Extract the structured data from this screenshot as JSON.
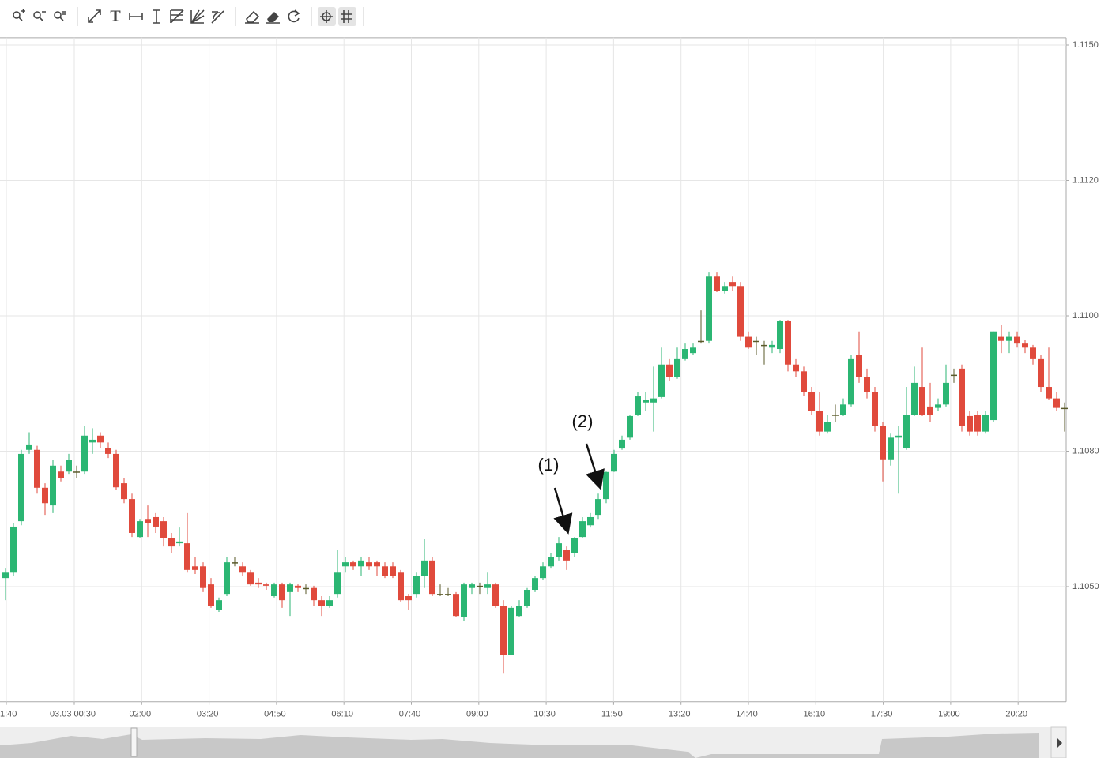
{
  "chart_data": {
    "type": "candlestick",
    "open": [
      1.10519,
      1.10531,
      1.10645,
      1.10802,
      1.10802,
      1.10719,
      1.1068,
      1.10755,
      1.10755,
      1.10755,
      1.10755,
      1.10813,
      1.10823,
      1.10805,
      1.10794,
      1.10729,
      1.10694,
      1.1061,
      1.1065,
      1.10654,
      1.10645,
      1.10607,
      1.10596,
      1.10596,
      1.10545,
      1.10545,
      1.10505,
      1.10448,
      1.10484,
      1.10554,
      1.10545,
      1.10531,
      1.10509,
      1.10505,
      1.10479,
      1.10505,
      1.10488,
      1.10502,
      1.10497,
      1.10497,
      1.1047,
      1.10458,
      1.10484,
      1.10545,
      1.10554,
      1.10545,
      1.10554,
      1.10554,
      1.10545,
      1.10545,
      1.10531,
      1.10479,
      1.10484,
      1.10523,
      1.10558,
      1.10484,
      1.10484,
      1.10484,
      1.10432,
      1.10497,
      1.10502,
      1.10497,
      1.10505,
      1.10458,
      1.10348,
      1.10435,
      1.10458,
      1.10493,
      1.10519,
      1.10545,
      1.10566,
      1.10581,
      1.10575,
      1.1061,
      1.10636,
      1.10659,
      1.10694,
      1.10755,
      1.10804,
      1.1082,
      1.10854,
      1.10872,
      1.10872,
      1.1088,
      1.10928,
      1.1091,
      1.10936,
      1.10945,
      1.10963,
      1.10963,
      1.11058,
      1.11037,
      1.1105,
      1.11044,
      1.10969,
      1.10963,
      1.10957,
      1.10953,
      1.10951,
      1.10992,
      1.10928,
      1.10918,
      1.10887,
      1.1086,
      1.10829,
      1.10854,
      1.10854,
      1.10869,
      1.10942,
      1.1091,
      1.10887,
      1.10837,
      1.10782,
      1.1082,
      1.10805,
      1.10854,
      1.10895,
      1.10866,
      1.10864,
      1.10869,
      1.10913,
      1.10922,
      1.10852,
      1.10854,
      1.10829,
      1.10846,
      1.10969,
      1.10963,
      1.10969,
      1.10959,
      1.10953,
      1.10936,
      1.10895,
      1.10878,
      1.10864
    ],
    "close": [
      1.10531,
      1.10633,
      1.10794,
      1.1081,
      1.10719,
      1.10685,
      1.10768,
      1.10741,
      1.1078,
      1.10755,
      1.10823,
      1.10817,
      1.10813,
      1.10794,
      1.1072,
      1.10694,
      1.10619,
      1.10645,
      1.10641,
      1.10633,
      1.10607,
      1.10589,
      1.106,
      1.10537,
      1.10537,
      1.10497,
      1.10458,
      1.1047,
      1.10554,
      1.10554,
      1.10531,
      1.10505,
      1.10505,
      1.10502,
      1.10505,
      1.1047,
      1.10505,
      1.10497,
      1.10497,
      1.1047,
      1.10458,
      1.1047,
      1.10531,
      1.10554,
      1.10545,
      1.10558,
      1.10545,
      1.10545,
      1.10523,
      1.10523,
      1.1047,
      1.1047,
      1.10523,
      1.10558,
      1.10484,
      1.10484,
      1.10484,
      1.10435,
      1.10505,
      1.10505,
      1.10502,
      1.10505,
      1.10458,
      1.10348,
      1.10453,
      1.10458,
      1.10493,
      1.10519,
      1.10545,
      1.10566,
      1.10596,
      1.10558,
      1.10607,
      1.10645,
      1.10654,
      1.10694,
      1.10754,
      1.10794,
      1.10817,
      1.10852,
      1.10881,
      1.10876,
      1.10878,
      1.10928,
      1.1091,
      1.10936,
      1.10951,
      1.10953,
      1.10963,
      1.11058,
      1.11037,
      1.11044,
      1.11044,
      1.10969,
      1.10953,
      1.10963,
      1.10957,
      1.10957,
      1.10992,
      1.10928,
      1.10918,
      1.10887,
      1.1086,
      1.10829,
      1.10843,
      1.10854,
      1.10869,
      1.10936,
      1.1091,
      1.10887,
      1.10837,
      1.10782,
      1.1082,
      1.10823,
      1.10854,
      1.10901,
      1.10854,
      1.10854,
      1.10869,
      1.10901,
      1.10913,
      1.10837,
      1.10829,
      1.10829,
      1.10854,
      1.10977,
      1.10963,
      1.10969,
      1.10959,
      1.10953,
      1.10936,
      1.10895,
      1.10878,
      1.10864,
      1.10864
    ],
    "high": [
      1.1054,
      1.10641,
      1.10802,
      1.10828,
      1.10808,
      1.10729,
      1.1078,
      1.10768,
      1.10794,
      1.10768,
      1.10837,
      1.10834,
      1.10828,
      1.10813,
      1.10802,
      1.10741,
      1.10706,
      1.1065,
      1.1068,
      1.10663,
      1.10654,
      1.10619,
      1.10631,
      1.10663,
      1.10566,
      1.10554,
      1.10519,
      1.10476,
      1.10566,
      1.10566,
      1.10554,
      1.10537,
      1.10519,
      1.10509,
      1.10509,
      1.10509,
      1.10509,
      1.10505,
      1.10505,
      1.10502,
      1.10479,
      1.10479,
      1.10581,
      1.10566,
      1.10558,
      1.10566,
      1.10566,
      1.10558,
      1.10554,
      1.10554,
      1.10537,
      1.10484,
      1.10531,
      1.10605,
      1.10566,
      1.10505,
      1.10497,
      1.10488,
      1.10509,
      1.10509,
      1.10509,
      1.10531,
      1.10509,
      1.1047,
      1.10458,
      1.1047,
      1.10497,
      1.10523,
      1.10554,
      1.10575,
      1.1061,
      1.10589,
      1.1061,
      1.10654,
      1.10663,
      1.10706,
      1.10755,
      1.10802,
      1.10823,
      1.10854,
      1.10887,
      1.10887,
      1.10925,
      1.10953,
      1.10936,
      1.10953,
      1.10959,
      1.10959,
      1.11008,
      1.11064,
      1.11064,
      1.1105,
      1.11058,
      1.1105,
      1.10977,
      1.10969,
      1.10963,
      1.10963,
      1.10994,
      1.10994,
      1.10936,
      1.10925,
      1.10895,
      1.10887,
      1.10854,
      1.10869,
      1.10878,
      1.10942,
      1.10977,
      1.10922,
      1.10895,
      1.10843,
      1.10826,
      1.10837,
      1.10895,
      1.10925,
      1.10953,
      1.10901,
      1.10878,
      1.10928,
      1.10922,
      1.10928,
      1.1086,
      1.1086,
      1.1086,
      1.10977,
      1.10986,
      1.10977,
      1.10977,
      1.10965,
      1.10957,
      1.10942,
      1.10953,
      1.10887,
      1.10872
    ],
    "low": [
      1.1047,
      1.10523,
      1.10636,
      1.10794,
      1.10706,
      1.10659,
      1.10663,
      1.10733,
      1.1075,
      1.10741,
      1.1075,
      1.10794,
      1.10805,
      1.10785,
      1.10715,
      1.10685,
      1.1061,
      1.10607,
      1.1061,
      1.10619,
      1.10589,
      1.10575,
      1.10589,
      1.10531,
      1.10528,
      1.10488,
      1.10453,
      1.10444,
      1.10479,
      1.10545,
      1.10523,
      1.10502,
      1.10497,
      1.10493,
      1.10476,
      1.10453,
      1.10435,
      1.10488,
      1.10484,
      1.10458,
      1.10435,
      1.10453,
      1.10476,
      1.10531,
      1.10537,
      1.10523,
      1.10537,
      1.10523,
      1.10519,
      1.10519,
      1.10467,
      1.10448,
      1.10476,
      1.10497,
      1.10479,
      1.10479,
      1.10479,
      1.10432,
      1.10423,
      1.10484,
      1.10484,
      1.10484,
      1.10453,
      1.10309,
      1.10348,
      1.10432,
      1.10453,
      1.10488,
      1.10514,
      1.1054,
      1.10558,
      1.10537,
      1.10566,
      1.10607,
      1.10631,
      1.1065,
      1.10685,
      1.10754,
      1.10802,
      1.10817,
      1.10852,
      1.1086,
      1.10829,
      1.10878,
      1.10904,
      1.10907,
      1.10934,
      1.10942,
      1.10959,
      1.10959,
      1.11035,
      1.11033,
      1.11037,
      1.10963,
      1.10951,
      1.10942,
      1.10928,
      1.10945,
      1.10945,
      1.10918,
      1.1091,
      1.10881,
      1.10854,
      1.10823,
      1.10826,
      1.10843,
      1.10852,
      1.10866,
      1.10901,
      1.10878,
      1.10829,
      1.10733,
      1.10768,
      1.10706,
      1.10802,
      1.10852,
      1.10852,
      1.10843,
      1.1086,
      1.10866,
      1.10901,
      1.10829,
      1.10823,
      1.10823,
      1.10826,
      1.10843,
      1.10945,
      1.10945,
      1.10953,
      1.10945,
      1.10928,
      1.10887,
      1.10876,
      1.1086,
      1.10829
    ],
    "up_color": "#2bb673",
    "down_color": "#e04a3c",
    "ylim": [
      1.10245,
      1.11516
    ],
    "yticks": [
      {
        "value": 1.105,
        "label": "1.1050"
      },
      {
        "value": 1.108,
        "label": "1.1080"
      },
      {
        "value": 1.11,
        "label": "1.1100"
      },
      {
        "value": 1.112,
        "label": "1.1120"
      },
      {
        "value": 1.115,
        "label": "1.1150"
      }
    ],
    "x_labels": [
      "1:40",
      "03.03 00:30",
      "02:00",
      "03:20",
      "04:50",
      "06:10",
      "07:40",
      "09:00",
      "10:30",
      "11:50",
      "13:20",
      "14:40",
      "16:10",
      "17:30",
      "19:00",
      "20:20"
    ],
    "annotations": [
      "(1)",
      "(2)"
    ],
    "grid": true
  }
}
